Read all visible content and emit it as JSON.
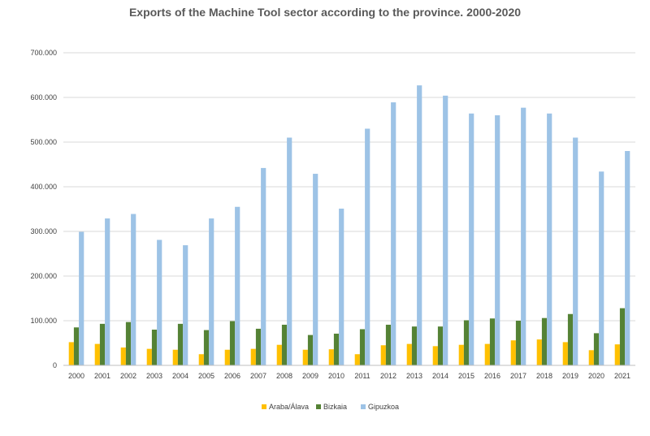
{
  "chart_data": {
    "type": "bar",
    "title": "Exports of the Machine Tool sector according to the province. 2000-2020",
    "xlabel": "",
    "ylabel": "",
    "ylim": [
      0,
      700000
    ],
    "y_ticks": [
      0,
      100000,
      200000,
      300000,
      400000,
      500000,
      600000,
      700000
    ],
    "y_tick_labels": [
      "0",
      "100.000",
      "200.000",
      "300.000",
      "400.000",
      "500.000",
      "600.000",
      "700.000"
    ],
    "grid": true,
    "legend_position": "bottom",
    "categories": [
      "2000",
      "2001",
      "2002",
      "2003",
      "2004",
      "2005",
      "2006",
      "2007",
      "2008",
      "2009",
      "2010",
      "2011",
      "2012",
      "2013",
      "2014",
      "2015",
      "2016",
      "2017",
      "2018",
      "2019",
      "2020",
      "2021"
    ],
    "series": [
      {
        "name": "Araba/Álava",
        "color": "#FFC000",
        "values": [
          52000,
          48000,
          40000,
          37000,
          35000,
          25000,
          35000,
          37000,
          46000,
          35000,
          36000,
          25000,
          45000,
          48000,
          43000,
          46000,
          48000,
          56000,
          58000,
          52000,
          34000,
          47000
        ]
      },
      {
        "name": "Bizkaia",
        "color": "#548235",
        "values": [
          85000,
          93000,
          97000,
          80000,
          93000,
          79000,
          99000,
          82000,
          91000,
          68000,
          71000,
          81000,
          91000,
          87000,
          87000,
          101000,
          105000,
          100000,
          106000,
          115000,
          72000,
          128000
        ]
      },
      {
        "name": "Gipuzkoa",
        "color": "#9DC3E6",
        "values": [
          299000,
          329000,
          339000,
          281000,
          269000,
          329000,
          355000,
          442000,
          510000,
          429000,
          351000,
          530000,
          589000,
          627000,
          604000,
          564000,
          560000,
          577000,
          564000,
          510000,
          434000,
          480000
        ]
      }
    ]
  }
}
